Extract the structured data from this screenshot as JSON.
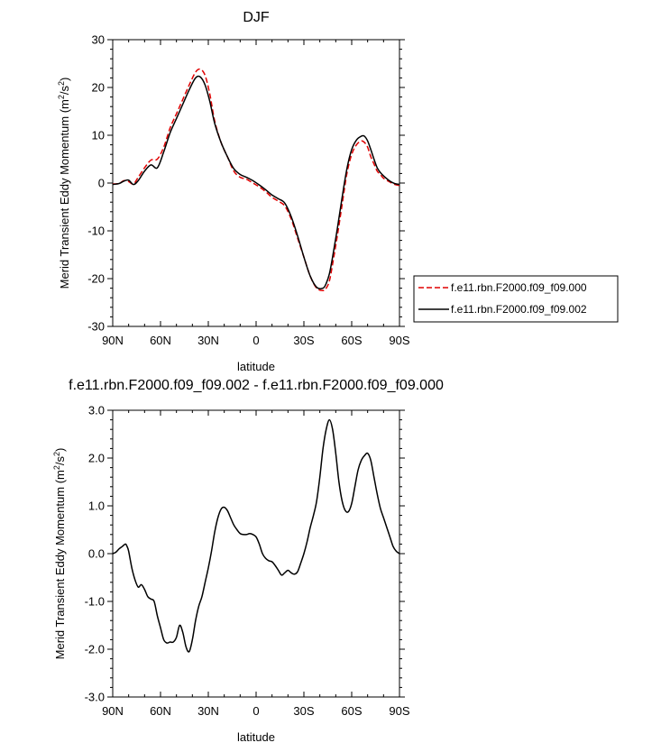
{
  "chart_data": [
    {
      "type": "line",
      "title": "DJF",
      "xlabel": "latitude",
      "ylabel_base": "Merid Transient Eddy Momentum (m",
      "ylabel_sup1": "2",
      "ylabel_mid": "/s",
      "ylabel_sup2": "2",
      "ylabel_end": ")",
      "xlim": [
        90,
        -90
      ],
      "ylim": [
        -30,
        30
      ],
      "xticks": [
        {
          "value": 90,
          "label": "90N"
        },
        {
          "value": 60,
          "label": "60N"
        },
        {
          "value": 30,
          "label": "30N"
        },
        {
          "value": 0,
          "label": "0"
        },
        {
          "value": -30,
          "label": "30S"
        },
        {
          "value": -60,
          "label": "60S"
        },
        {
          "value": -90,
          "label": "90S"
        }
      ],
      "yticks": [
        {
          "value": 30,
          "label": "30"
        },
        {
          "value": 20,
          "label": "20"
        },
        {
          "value": 10,
          "label": "10"
        },
        {
          "value": 0,
          "label": "0"
        },
        {
          "value": -10,
          "label": "-10"
        },
        {
          "value": -20,
          "label": "-20"
        },
        {
          "value": -30,
          "label": "-30"
        }
      ],
      "grid": false,
      "legend_position": "right",
      "series": [
        {
          "name": "f.e11.rbn.F2000.f09_f09.000",
          "color": "#e00000",
          "dash": "dashed",
          "x": [
            90,
            86,
            83,
            80,
            77,
            74,
            70,
            66,
            62,
            58,
            54,
            50,
            46,
            42,
            38,
            35,
            32,
            29,
            26,
            22,
            18,
            14,
            10,
            6,
            2,
            -2,
            -6,
            -10,
            -14,
            -18,
            -22,
            -26,
            -30,
            -34,
            -38,
            -42,
            -44,
            -46,
            -48,
            -51,
            -54,
            -57,
            -60,
            -63,
            -66,
            -68,
            -70,
            -72,
            -74,
            -76,
            -78,
            -80,
            -84,
            -87,
            -90
          ],
          "y": [
            -0.2,
            -0.1,
            0.5,
            0.3,
            -0.2,
            1.2,
            3.2,
            4.8,
            5.0,
            7.5,
            11.5,
            14.5,
            17.5,
            20.5,
            23.2,
            23.8,
            22.5,
            18.5,
            13.0,
            8.5,
            5.5,
            2.5,
            1.2,
            0.8,
            0.0,
            -0.8,
            -1.8,
            -3.0,
            -3.8,
            -4.8,
            -7.5,
            -11.5,
            -15.5,
            -19.5,
            -22.0,
            -22.5,
            -22.0,
            -20.5,
            -17.0,
            -11.0,
            -4.5,
            2.0,
            6.0,
            8.0,
            8.8,
            8.5,
            7.5,
            5.5,
            4.0,
            2.5,
            1.8,
            1.0,
            0.2,
            -0.3,
            -0.5
          ]
        },
        {
          "name": "f.e11.rbn.F2000.f09_f09.002",
          "color": "#000000",
          "dash": "solid",
          "x": [
            90,
            86,
            83,
            80,
            77,
            74,
            70,
            66,
            62,
            58,
            54,
            50,
            46,
            42,
            38,
            35,
            32,
            29,
            26,
            22,
            18,
            14,
            10,
            6,
            2,
            -2,
            -6,
            -10,
            -14,
            -18,
            -22,
            -26,
            -30,
            -34,
            -38,
            -42,
            -44,
            -46,
            -48,
            -51,
            -54,
            -57,
            -60,
            -63,
            -66,
            -68,
            -70,
            -72,
            -74,
            -76,
            -78,
            -80,
            -84,
            -87,
            -90
          ],
          "y": [
            -0.3,
            -0.1,
            0.4,
            0.6,
            -0.3,
            0.5,
            2.5,
            3.8,
            3.2,
            6.5,
            10.5,
            13.5,
            16.5,
            19.5,
            22.0,
            22.2,
            20.5,
            17.0,
            12.5,
            8.5,
            5.5,
            3.0,
            1.8,
            1.2,
            0.5,
            -0.4,
            -1.4,
            -2.5,
            -3.3,
            -4.2,
            -7.0,
            -11.0,
            -15.5,
            -19.5,
            -21.8,
            -22.0,
            -21.0,
            -19.0,
            -15.5,
            -9.5,
            -3.0,
            3.0,
            7.0,
            9.0,
            9.8,
            9.8,
            8.8,
            7.0,
            5.0,
            3.2,
            2.2,
            1.5,
            0.4,
            -0.1,
            -0.3
          ]
        }
      ]
    },
    {
      "type": "line",
      "title": "f.e11.rbn.F2000.f09_f09.002 - f.e11.rbn.F2000.f09_f09.000",
      "xlabel": "latitude",
      "ylabel_base": "Merid Transient Eddy Momentum (m",
      "ylabel_sup1": "2",
      "ylabel_mid": "/s",
      "ylabel_sup2": "2",
      "ylabel_end": ")",
      "xlim": [
        90,
        -90
      ],
      "ylim": [
        -3,
        3
      ],
      "xticks": [
        {
          "value": 90,
          "label": "90N"
        },
        {
          "value": 60,
          "label": "60N"
        },
        {
          "value": 30,
          "label": "30N"
        },
        {
          "value": 0,
          "label": "0"
        },
        {
          "value": -30,
          "label": "30S"
        },
        {
          "value": -60,
          "label": "60S"
        },
        {
          "value": -90,
          "label": "90S"
        }
      ],
      "yticks": [
        {
          "value": 3,
          "label": "3.0"
        },
        {
          "value": 2,
          "label": "2.0"
        },
        {
          "value": 1,
          "label": "1.0"
        },
        {
          "value": 0,
          "label": "0.0"
        },
        {
          "value": -1,
          "label": "-1.0"
        },
        {
          "value": -2,
          "label": "-2.0"
        },
        {
          "value": -3,
          "label": "-3.0"
        }
      ],
      "grid": false,
      "series": [
        {
          "color": "#000000",
          "dash": "solid",
          "x": [
            90,
            88,
            86,
            84,
            82,
            81,
            80,
            78,
            76,
            74,
            72,
            70,
            68,
            66,
            64,
            62,
            60,
            58,
            56,
            54,
            52,
            50,
            48,
            46,
            44,
            42,
            40,
            38,
            36,
            34,
            32,
            30,
            28,
            26,
            24,
            22,
            20,
            18,
            16,
            14,
            12,
            10,
            8,
            6,
            4,
            2,
            0,
            -2,
            -4,
            -6,
            -8,
            -10,
            -12,
            -14,
            -16,
            -18,
            -20,
            -22,
            -24,
            -26,
            -28,
            -30,
            -32,
            -34,
            -36,
            -38,
            -40,
            -42,
            -44,
            -46,
            -48,
            -50,
            -52,
            -54,
            -56,
            -58,
            -60,
            -62,
            -64,
            -66,
            -68,
            -70,
            -72,
            -74,
            -76,
            -78,
            -80,
            -82,
            -84,
            -86,
            -88,
            -90
          ],
          "y": [
            0.0,
            0.03,
            0.1,
            0.15,
            0.2,
            0.15,
            0.05,
            -0.3,
            -0.55,
            -0.7,
            -0.65,
            -0.75,
            -0.9,
            -0.95,
            -1.0,
            -1.3,
            -1.55,
            -1.8,
            -1.87,
            -1.85,
            -1.85,
            -1.75,
            -1.5,
            -1.65,
            -1.95,
            -2.05,
            -1.8,
            -1.4,
            -1.1,
            -0.9,
            -0.6,
            -0.3,
            0.05,
            0.45,
            0.75,
            0.93,
            0.97,
            0.9,
            0.75,
            0.6,
            0.5,
            0.42,
            0.4,
            0.4,
            0.42,
            0.4,
            0.35,
            0.2,
            0.0,
            -0.1,
            -0.15,
            -0.17,
            -0.25,
            -0.35,
            -0.45,
            -0.4,
            -0.35,
            -0.4,
            -0.43,
            -0.38,
            -0.2,
            0.0,
            0.25,
            0.55,
            0.8,
            1.1,
            1.6,
            2.2,
            2.6,
            2.8,
            2.6,
            2.1,
            1.5,
            1.1,
            0.9,
            0.88,
            1.05,
            1.4,
            1.75,
            1.95,
            2.05,
            2.1,
            1.95,
            1.6,
            1.25,
            0.95,
            0.75,
            0.55,
            0.35,
            0.15,
            0.05,
            0.0
          ]
        }
      ]
    }
  ]
}
